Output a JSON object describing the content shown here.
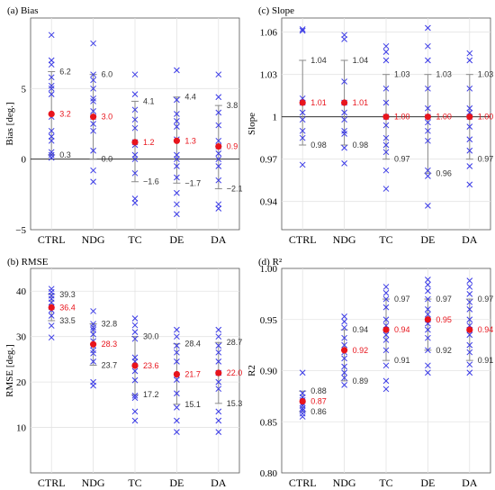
{
  "colors": {
    "point": "#3a3ae6",
    "mean": "#e8141c",
    "whisker": "#8a8a8a",
    "grid": "#e3e3e3"
  },
  "chart_data": [
    {
      "type": "scatter",
      "title": "(a) Bias",
      "ylabel": "Bias [deg.]",
      "ylim": [
        -5,
        10
      ],
      "yticks": [
        -5,
        0,
        5
      ],
      "ytick_labels": [
        "−5",
        "0",
        "5"
      ],
      "ref_line": 0,
      "categories": [
        "CTRL",
        "NDG",
        "TC",
        "DE",
        "DA"
      ],
      "mean": [
        3.2,
        3.0,
        1.2,
        1.3,
        0.9
      ],
      "mean_labels": [
        "3.2",
        "3.0",
        "1.2",
        "1.3",
        "0.9"
      ],
      "upper": [
        6.2,
        6.0,
        4.1,
        4.4,
        3.8
      ],
      "upper_labels": [
        "6.2",
        "6.0",
        "4.1",
        "4.4",
        "3.8"
      ],
      "lower": [
        0.3,
        0.0,
        -1.6,
        -1.7,
        -2.1
      ],
      "lower_labels": [
        "0.3",
        "0.0",
        "−1.6",
        "−1.7",
        "−2.1"
      ],
      "points": [
        [
          8.8,
          7.0,
          6.7,
          5.8,
          5.2,
          5.0,
          4.6,
          3.0,
          2.0,
          1.6,
          1.3,
          0.5,
          0.3,
          0.1
        ],
        [
          8.2,
          6.0,
          5.6,
          5.0,
          4.3,
          4.1,
          3.4,
          3.0,
          2.5,
          2.0,
          0.6,
          -0.8,
          -1.6
        ],
        [
          6.0,
          4.6,
          3.5,
          2.8,
          2.2,
          1.2,
          1.0,
          0.3,
          0.0,
          -1.0,
          -2.8,
          -3.1
        ],
        [
          6.3,
          4.2,
          3.2,
          2.7,
          2.3,
          1.4,
          0.3,
          0.0,
          -0.5,
          -1.3,
          -2.4,
          -3.2,
          -3.9
        ],
        [
          6.0,
          4.4,
          3.3,
          2.4,
          1.3,
          0.9,
          0.4,
          0.0,
          -0.5,
          -1.5,
          -3.2,
          -3.5
        ]
      ]
    },
    {
      "type": "scatter",
      "title": "(c) Slope",
      "ylabel": "Slope",
      "ylim": [
        0.92,
        1.07
      ],
      "yticks": [
        0.94,
        0.97,
        1.0,
        1.03,
        1.06
      ],
      "ytick_labels": [
        "0.94",
        "0.97",
        "1",
        "1.03",
        "1.06"
      ],
      "ref_line": 1.0,
      "categories": [
        "CTRL",
        "NDG",
        "TC",
        "DE",
        "DA"
      ],
      "mean": [
        1.01,
        1.01,
        1.0,
        1.0,
        1.0
      ],
      "mean_labels": [
        "1.01",
        "1.01",
        "1.00",
        "1.00",
        "1.00"
      ],
      "upper": [
        1.04,
        1.04,
        1.03,
        1.03,
        1.03
      ],
      "upper_labels": [
        "1.04",
        "1.04",
        "1.03",
        "1.03",
        "1.03"
      ],
      "lower": [
        0.98,
        0.98,
        0.97,
        0.96,
        0.97
      ],
      "lower_labels": [
        "0.98",
        "0.98",
        "0.97",
        "0.96",
        "0.97"
      ],
      "points": [
        [
          1.062,
          1.061,
          1.013,
          1.01,
          1.003,
          0.998,
          0.99,
          0.985,
          0.966
        ],
        [
          1.058,
          1.055,
          1.025,
          1.01,
          1.003,
          0.998,
          0.99,
          0.988,
          0.978,
          0.967
        ],
        [
          1.05,
          1.046,
          1.04,
          1.02,
          1.01,
          1.0,
          0.994,
          0.985,
          0.98,
          0.975,
          0.962,
          0.949
        ],
        [
          1.063,
          1.05,
          1.04,
          1.02,
          1.006,
          1.0,
          0.996,
          0.99,
          0.983,
          0.962,
          0.958,
          0.937
        ],
        [
          1.045,
          1.04,
          1.02,
          1.006,
          1.003,
          1.0,
          0.993,
          0.984,
          0.976,
          0.965,
          0.952
        ]
      ]
    },
    {
      "type": "scatter",
      "title": "(b) RMSE",
      "ylabel": "RMSE [deg.]",
      "ylim": [
        0,
        45
      ],
      "yticks": [
        10,
        20,
        30,
        40
      ],
      "ytick_labels": [
        "10",
        "20",
        "30",
        "40"
      ],
      "categories": [
        "CTRL",
        "NDG",
        "TC",
        "DE",
        "DA"
      ],
      "mean": [
        36.4,
        28.3,
        23.6,
        21.7,
        22.0
      ],
      "mean_labels": [
        "36.4",
        "28.3",
        "23.6",
        "21.7",
        "22.0"
      ],
      "upper": [
        39.3,
        32.8,
        30.0,
        28.4,
        28.7
      ],
      "upper_labels": [
        "39.3",
        "32.8",
        "30.0",
        "28.4",
        "28.7"
      ],
      "lower": [
        33.5,
        23.7,
        17.2,
        15.1,
        15.3
      ],
      "lower_labels": [
        "33.5",
        "23.7",
        "17.2",
        "15.1",
        "15.3"
      ],
      "points": [
        [
          40.5,
          39.8,
          39.0,
          38.3,
          37.5,
          36.5,
          35.8,
          34.6,
          32.4,
          29.8
        ],
        [
          35.6,
          32.8,
          32.0,
          31.5,
          30.5,
          29.0,
          28.0,
          27.0,
          26.3,
          24.5,
          20.0,
          19.2
        ],
        [
          34.0,
          32.5,
          31.0,
          29.5,
          25.4,
          24.5,
          22.4,
          20.4,
          17.0,
          16.5,
          13.5,
          11.5
        ],
        [
          31.5,
          30.0,
          28.0,
          26.5,
          24.5,
          21.5,
          20.5,
          17.5,
          14.4,
          11.5,
          9.0
        ],
        [
          31.5,
          30.0,
          28.0,
          26.5,
          24.5,
          22.0,
          20.0,
          18.5,
          13.5,
          11.5,
          9.0
        ]
      ]
    },
    {
      "type": "scatter",
      "title": "(d) R²",
      "ylabel": "R2",
      "ylim": [
        0.8,
        1.0
      ],
      "yticks": [
        0.8,
        0.85,
        0.9,
        0.95,
        1.0
      ],
      "ytick_labels": [
        "0.80",
        "0.85",
        "0.90",
        "0.95",
        "1.00"
      ],
      "categories": [
        "CTRL",
        "NDG",
        "TC",
        "DE",
        "DA"
      ],
      "mean": [
        0.87,
        0.92,
        0.94,
        0.95,
        0.94
      ],
      "mean_labels": [
        "0.87",
        "0.92",
        "0.94",
        "0.95",
        "0.94"
      ],
      "upper": [
        0.88,
        0.94,
        0.97,
        0.97,
        0.97
      ],
      "upper_labels": [
        "0.88",
        "0.94",
        "0.97",
        "0.97",
        "0.97"
      ],
      "lower": [
        0.86,
        0.89,
        0.91,
        0.92,
        0.91
      ],
      "lower_labels": [
        "0.86",
        "0.89",
        "0.91",
        "0.92",
        "0.91"
      ],
      "points": [
        [
          0.898,
          0.878,
          0.874,
          0.871,
          0.868,
          0.866,
          0.863,
          0.861,
          0.858,
          0.855
        ],
        [
          0.953,
          0.948,
          0.942,
          0.932,
          0.925,
          0.918,
          0.912,
          0.904,
          0.898,
          0.893,
          0.886
        ],
        [
          0.982,
          0.976,
          0.97,
          0.962,
          0.95,
          0.944,
          0.94,
          0.935,
          0.93,
          0.92,
          0.905,
          0.89,
          0.882
        ],
        [
          0.989,
          0.984,
          0.978,
          0.97,
          0.96,
          0.955,
          0.95,
          0.946,
          0.94,
          0.932,
          0.92,
          0.905,
          0.898
        ],
        [
          0.988,
          0.982,
          0.975,
          0.967,
          0.96,
          0.95,
          0.944,
          0.94,
          0.935,
          0.925,
          0.918,
          0.906,
          0.898
        ]
      ]
    }
  ]
}
